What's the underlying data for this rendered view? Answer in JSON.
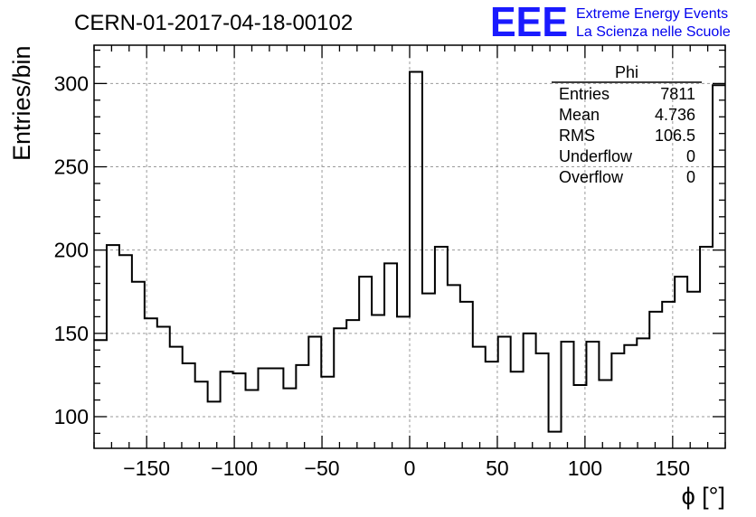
{
  "title": "CERN-01-2017-04-18-00102",
  "logo": {
    "mark": "EEE",
    "line1": "Extreme Energy Events",
    "line2": "La Scienza nelle Scuole",
    "color": "#1a1aff"
  },
  "stats": {
    "name": "Phi",
    "rows": [
      {
        "label": "Entries",
        "value": "7811"
      },
      {
        "label": "Mean",
        "value": "4.736"
      },
      {
        "label": "RMS",
        "value": "106.5"
      },
      {
        "label": "Underflow",
        "value": "0"
      },
      {
        "label": "Overflow",
        "value": "0"
      }
    ]
  },
  "chart_data": {
    "type": "histogram",
    "title": "CERN-01-2017-04-18-00102",
    "xlabel": "ϕ [°]",
    "ylabel": "Entries/bin",
    "xlim": [
      -180,
      180
    ],
    "ylim": [
      81,
      323
    ],
    "bin_width": 7.2,
    "x_ticks": [
      -150,
      -100,
      -50,
      0,
      50,
      100,
      150
    ],
    "x_tick_labels": [
      "−150",
      "−100",
      "−50",
      "0",
      "50",
      "100",
      "150"
    ],
    "y_ticks": [
      100,
      150,
      200,
      250,
      300
    ],
    "y_tick_labels": [
      "100",
      "150",
      "200",
      "250",
      "300"
    ],
    "grid": true,
    "values": [
      146,
      203,
      197,
      181,
      159,
      154,
      142,
      132,
      121,
      109,
      127,
      126,
      116,
      129,
      129,
      117,
      131,
      148,
      124,
      153,
      158,
      184,
      161,
      192,
      160,
      307,
      174,
      202,
      179,
      169,
      142,
      133,
      148,
      127,
      150,
      138,
      91,
      145,
      119,
      145,
      122,
      138,
      143,
      147,
      163,
      169,
      184,
      175,
      202,
      299
    ]
  }
}
